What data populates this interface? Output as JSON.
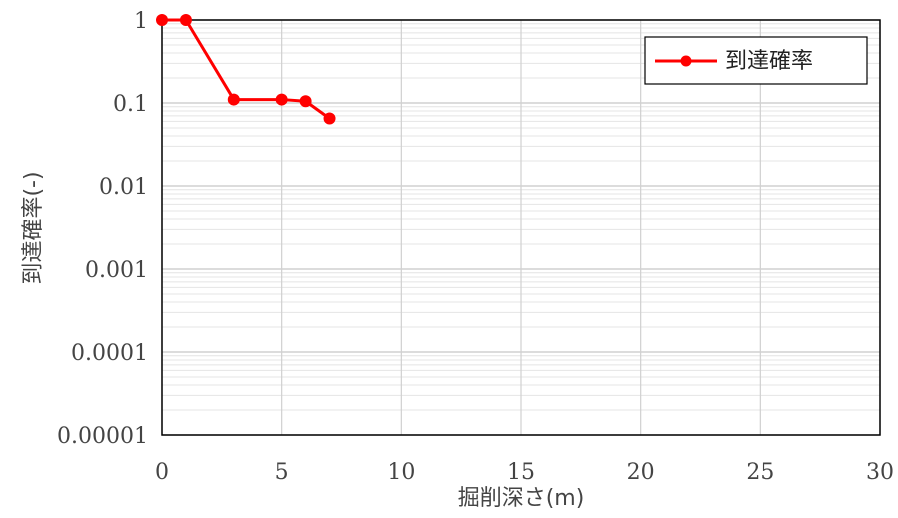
{
  "chart_data": {
    "type": "line",
    "xlabel": "掘削深さ(m)",
    "ylabel": "到達確率(-)",
    "x_scale": "linear",
    "y_scale": "log",
    "xlim": [
      0,
      30
    ],
    "ylim": [
      1e-05,
      1
    ],
    "x_ticks": [
      "0",
      "5",
      "10",
      "15",
      "20",
      "25",
      "30"
    ],
    "y_ticks": [
      "1",
      "0.1",
      "0.01",
      "0.001",
      "0.0001",
      "0.00001"
    ],
    "grid": true,
    "legend_position": "top-right",
    "series": [
      {
        "name": "到達確率",
        "color": "#ff0000",
        "marker": "circle",
        "x": [
          0,
          1,
          3,
          5,
          6,
          7
        ],
        "y": [
          1,
          1,
          0.11,
          0.11,
          0.105,
          0.065
        ]
      }
    ]
  }
}
